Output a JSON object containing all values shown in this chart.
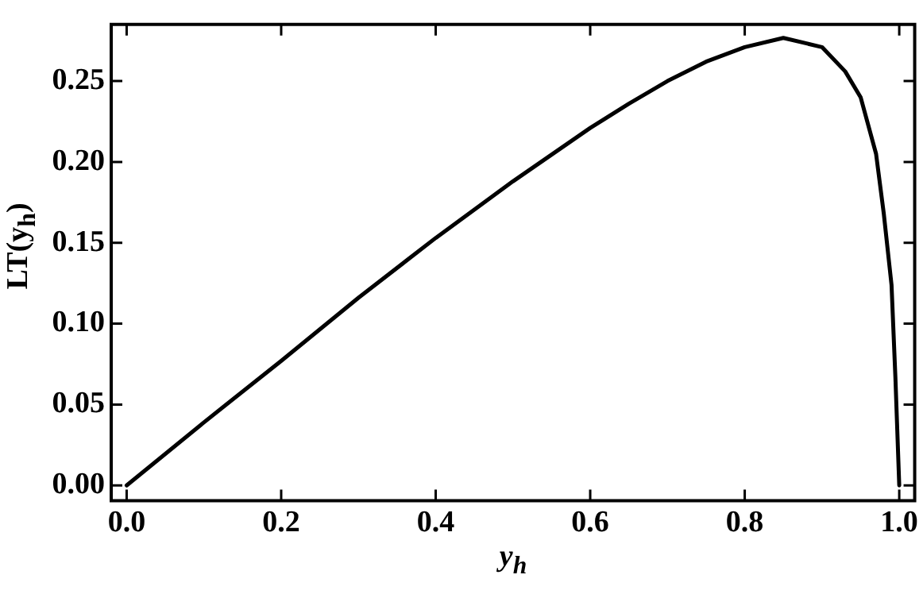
{
  "chart_data": {
    "type": "line",
    "xlabel": "y$_{h}$",
    "ylabel": "LT(y$_{h}$)",
    "x": [
      0,
      0.1,
      0.2,
      0.3,
      0.4,
      0.5,
      0.6,
      0.65,
      0.7,
      0.75,
      0.8,
      0.85,
      0.9,
      0.93,
      0.95,
      0.97,
      0.98,
      0.99,
      0.995,
      1.0
    ],
    "series": [
      {
        "color": "#000000",
        "values": [
          0,
          0.039,
          0.077,
          0.116,
          0.153,
          0.188,
          0.221,
          0.236,
          0.25,
          0.262,
          0.271,
          0.2767,
          0.271,
          0.256,
          0.24,
          0.205,
          0.168,
          0.124,
          0.067,
          0
        ]
      }
    ],
    "xlim": [
      -0.02,
      1.02
    ],
    "ylim": [
      -0.0094,
      0.285
    ],
    "xticks": [
      {
        "value": 0,
        "label": "0.0"
      },
      {
        "value": 0.2,
        "label": "0.2"
      },
      {
        "value": 0.4,
        "label": "0.4"
      },
      {
        "value": 0.6,
        "label": "0.6"
      },
      {
        "value": 0.8,
        "label": "0.8"
      },
      {
        "value": 1,
        "label": "1.0"
      }
    ],
    "yticks": [
      {
        "value": 0,
        "label": "0.00"
      },
      {
        "value": 0.05,
        "label": "0.05"
      },
      {
        "value": 0.1,
        "label": "0.10"
      },
      {
        "value": 0.15,
        "label": "0.15"
      },
      {
        "value": 0.2,
        "label": "0.20"
      },
      {
        "value": 0.25,
        "label": "0.25"
      }
    ],
    "grid": false,
    "legend": false,
    "marker": "none",
    "line_style": "solid"
  }
}
